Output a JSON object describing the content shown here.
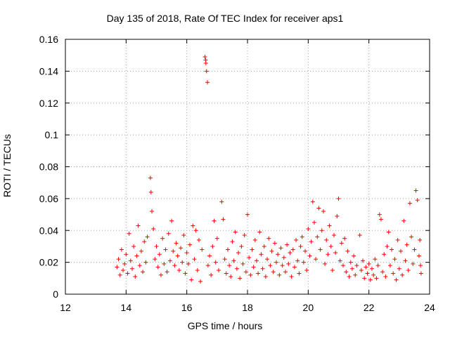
{
  "chart_data": {
    "type": "scatter",
    "title": "Day 135 of 2018, Rate Of TEC Index for receiver aps1",
    "xlabel": "GPS time / hours",
    "ylabel": "ROTI / TECUs",
    "xlim": [
      12,
      24
    ],
    "ylim": [
      0,
      0.16
    ],
    "xticks": [
      "12",
      "14",
      "16",
      "18",
      "20",
      "22",
      "24"
    ],
    "yticks": [
      "0",
      "0.02",
      "0.04",
      "0.06",
      "0.08",
      "0.1",
      "0.12",
      "0.14",
      "0.16"
    ],
    "grid": true,
    "marker": "+",
    "color": "#ff0000",
    "series": [
      {
        "points": [
          [
            13.7,
            0.017
          ],
          [
            13.75,
            0.022
          ],
          [
            13.8,
            0.012
          ],
          [
            13.85,
            0.028
          ],
          [
            13.9,
            0.015
          ],
          [
            13.95,
            0.019
          ],
          [
            14.0,
            0.025
          ],
          [
            14.05,
            0.013
          ],
          [
            14.1,
            0.038
          ],
          [
            14.15,
            0.021
          ],
          [
            14.2,
            0.016
          ],
          [
            14.25,
            0.03
          ],
          [
            14.3,
            0.011
          ],
          [
            14.35,
            0.024
          ],
          [
            14.4,
            0.043
          ],
          [
            14.45,
            0.018
          ],
          [
            14.5,
            0.027
          ],
          [
            14.55,
            0.014
          ],
          [
            14.6,
            0.033
          ],
          [
            14.65,
            0.02
          ],
          [
            14.7,
            0.036
          ],
          [
            14.8,
            0.073
          ],
          [
            14.82,
            0.064
          ],
          [
            14.85,
            0.052
          ],
          [
            14.9,
            0.041
          ],
          [
            14.95,
            0.022
          ],
          [
            15.0,
            0.03
          ],
          [
            15.05,
            0.017
          ],
          [
            15.1,
            0.025
          ],
          [
            15.15,
            0.012
          ],
          [
            15.2,
            0.035
          ],
          [
            15.25,
            0.019
          ],
          [
            15.3,
            0.028
          ],
          [
            15.35,
            0.014
          ],
          [
            15.4,
            0.038
          ],
          [
            15.45,
            0.021
          ],
          [
            15.5,
            0.046
          ],
          [
            15.55,
            0.027
          ],
          [
            15.6,
            0.018
          ],
          [
            15.65,
            0.032
          ],
          [
            15.7,
            0.024
          ],
          [
            15.75,
            0.015
          ],
          [
            15.8,
            0.029
          ],
          [
            15.85,
            0.02
          ],
          [
            15.9,
            0.037
          ],
          [
            15.95,
            0.013
          ],
          [
            16.0,
            0.026
          ],
          [
            16.05,
            0.019
          ],
          [
            16.1,
            0.031
          ],
          [
            16.15,
            0.009
          ],
          [
            16.2,
            0.043
          ],
          [
            16.25,
            0.022
          ],
          [
            16.3,
            0.04
          ],
          [
            16.35,
            0.015
          ],
          [
            16.4,
            0.034
          ],
          [
            16.45,
            0.008
          ],
          [
            16.5,
            0.028
          ],
          [
            16.6,
            0.149
          ],
          [
            16.62,
            0.147
          ],
          [
            16.63,
            0.145
          ],
          [
            16.65,
            0.14
          ],
          [
            16.68,
            0.133
          ],
          [
            16.7,
            0.018
          ],
          [
            16.75,
            0.024
          ],
          [
            16.8,
            0.012
          ],
          [
            16.85,
            0.03
          ],
          [
            16.9,
            0.046
          ],
          [
            16.95,
            0.02
          ],
          [
            17.0,
            0.035
          ],
          [
            17.05,
            0.015
          ],
          [
            17.15,
            0.058
          ],
          [
            17.2,
            0.047
          ],
          [
            17.25,
            0.022
          ],
          [
            17.3,
            0.013
          ],
          [
            17.35,
            0.028
          ],
          [
            17.4,
            0.018
          ],
          [
            17.45,
            0.011
          ],
          [
            17.5,
            0.033
          ],
          [
            17.55,
            0.021
          ],
          [
            17.6,
            0.039
          ],
          [
            17.65,
            0.016
          ],
          [
            17.7,
            0.026
          ],
          [
            17.75,
            0.01
          ],
          [
            17.8,
            0.03
          ],
          [
            17.85,
            0.019
          ],
          [
            17.9,
            0.037
          ],
          [
            17.95,
            0.014
          ],
          [
            18.0,
            0.05
          ],
          [
            18.05,
            0.023
          ],
          [
            18.1,
            0.012
          ],
          [
            18.15,
            0.028
          ],
          [
            18.2,
            0.017
          ],
          [
            18.25,
            0.034
          ],
          [
            18.3,
            0.021
          ],
          [
            18.35,
            0.013
          ],
          [
            18.4,
            0.039
          ],
          [
            18.45,
            0.025
          ],
          [
            18.5,
            0.016
          ],
          [
            18.55,
            0.03
          ],
          [
            18.6,
            0.011
          ],
          [
            18.65,
            0.022
          ],
          [
            18.7,
            0.035
          ],
          [
            18.75,
            0.018
          ],
          [
            18.8,
            0.027
          ],
          [
            18.85,
            0.014
          ],
          [
            18.9,
            0.032
          ],
          [
            18.95,
            0.02
          ],
          [
            19.0,
            0.025
          ],
          [
            19.05,
            0.012
          ],
          [
            19.1,
            0.029
          ],
          [
            19.15,
            0.018
          ],
          [
            19.2,
            0.023
          ],
          [
            19.25,
            0.014
          ],
          [
            19.3,
            0.031
          ],
          [
            19.35,
            0.019
          ],
          [
            19.4,
            0.026
          ],
          [
            19.45,
            0.011
          ],
          [
            19.5,
            0.028
          ],
          [
            19.55,
            0.017
          ],
          [
            19.6,
            0.034
          ],
          [
            19.65,
            0.021
          ],
          [
            19.7,
            0.013
          ],
          [
            19.75,
            0.03
          ],
          [
            19.8,
            0.036
          ],
          [
            19.85,
            0.02
          ],
          [
            19.9,
            0.027
          ],
          [
            19.95,
            0.015
          ],
          [
            20.0,
            0.041
          ],
          [
            20.05,
            0.024
          ],
          [
            20.1,
            0.033
          ],
          [
            20.15,
            0.058
          ],
          [
            20.2,
            0.045
          ],
          [
            20.25,
            0.022
          ],
          [
            20.3,
            0.036
          ],
          [
            20.35,
            0.054
          ],
          [
            20.4,
            0.028
          ],
          [
            20.45,
            0.04
          ],
          [
            20.5,
            0.052
          ],
          [
            20.55,
            0.019
          ],
          [
            20.6,
            0.034
          ],
          [
            20.65,
            0.025
          ],
          [
            20.7,
            0.043
          ],
          [
            20.75,
            0.03
          ],
          [
            20.8,
            0.015
          ],
          [
            20.85,
            0.037
          ],
          [
            20.9,
            0.026
          ],
          [
            20.95,
            0.049
          ],
          [
            21.0,
            0.06
          ],
          [
            21.05,
            0.021
          ],
          [
            21.1,
            0.032
          ],
          [
            21.15,
            0.018
          ],
          [
            21.2,
            0.035
          ],
          [
            21.25,
            0.014
          ],
          [
            21.3,
            0.027
          ],
          [
            21.35,
            0.011
          ],
          [
            21.4,
            0.02
          ],
          [
            21.45,
            0.016
          ],
          [
            21.5,
            0.024
          ],
          [
            21.55,
            0.012
          ],
          [
            21.6,
            0.018
          ],
          [
            21.7,
            0.037
          ],
          [
            21.75,
            0.015
          ],
          [
            21.8,
            0.021
          ],
          [
            21.85,
            0.01
          ],
          [
            21.9,
            0.017
          ],
          [
            21.95,
            0.013
          ],
          [
            22.0,
            0.019
          ],
          [
            22.05,
            0.009
          ],
          [
            22.1,
            0.016
          ],
          [
            22.15,
            0.012
          ],
          [
            22.2,
            0.022
          ],
          [
            22.25,
            0.01
          ],
          [
            22.3,
            0.018
          ],
          [
            22.35,
            0.05
          ],
          [
            22.4,
            0.047
          ],
          [
            22.45,
            0.014
          ],
          [
            22.5,
            0.025
          ],
          [
            22.55,
            0.011
          ],
          [
            22.6,
            0.03
          ],
          [
            22.65,
            0.039
          ],
          [
            22.7,
            0.018
          ],
          [
            22.75,
            0.028
          ],
          [
            22.8,
            0.013
          ],
          [
            22.85,
            0.022
          ],
          [
            22.9,
            0.009
          ],
          [
            22.95,
            0.034
          ],
          [
            23.0,
            0.016
          ],
          [
            23.05,
            0.027
          ],
          [
            23.1,
            0.012
          ],
          [
            23.15,
            0.046
          ],
          [
            23.2,
            0.021
          ],
          [
            23.25,
            0.031
          ],
          [
            23.3,
            0.015
          ],
          [
            23.35,
            0.057
          ],
          [
            23.4,
            0.036
          ],
          [
            23.45,
            0.019
          ],
          [
            23.5,
            0.028
          ],
          [
            23.55,
            0.065
          ],
          [
            23.6,
            0.059
          ],
          [
            23.65,
            0.024
          ],
          [
            23.68,
            0.034
          ],
          [
            23.7,
            0.018
          ],
          [
            23.72,
            0.013
          ]
        ]
      }
    ]
  }
}
